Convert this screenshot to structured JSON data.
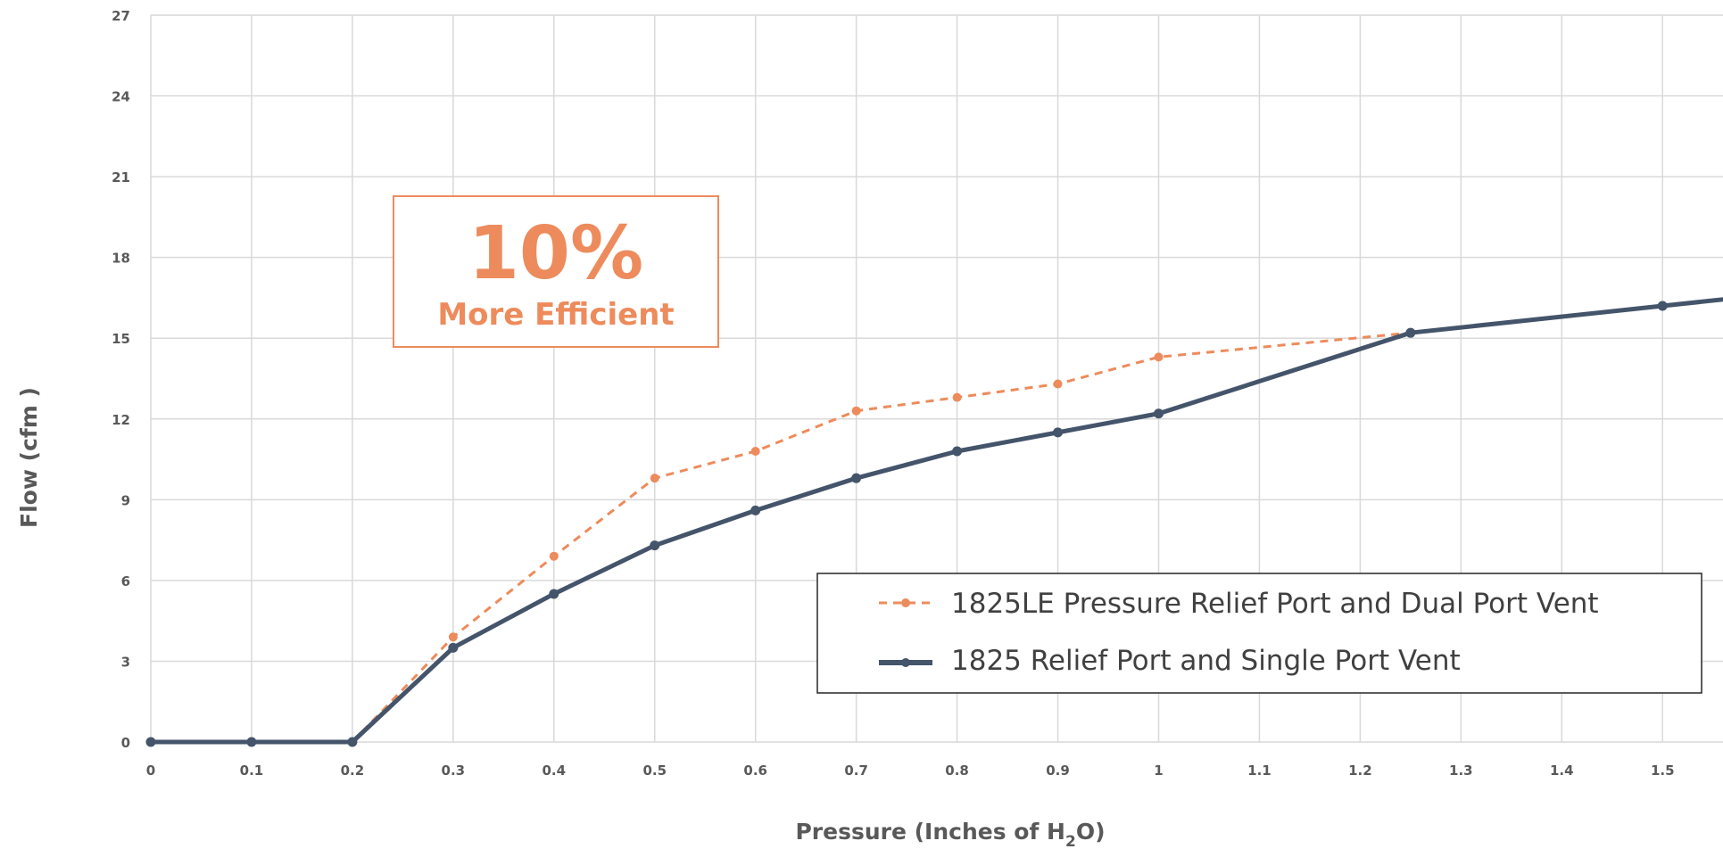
{
  "chart_data": {
    "type": "line",
    "xlabel": "Pressure (Inches of H",
    "xlabel_sub": "2",
    "xlabel_tail": "O)",
    "ylabel": "Flow (cfm )",
    "xlim": [
      0,
      1.56
    ],
    "ylim": [
      0,
      27
    ],
    "x_tick_labels": [
      "0",
      "0.1",
      "0.2",
      "0.3",
      "0.4",
      "0.5",
      "0.6",
      "0.7",
      "0.8",
      "0.9",
      "1",
      "1.1",
      "1.2",
      "1.3",
      "1.4",
      "1.5"
    ],
    "y_ticks": [
      0,
      3,
      6,
      9,
      12,
      15,
      18,
      21,
      24,
      27
    ],
    "grid": true,
    "legend_position": "bottom-right",
    "series": [
      {
        "name": "1825LE Pressure Relief Port and Dual Port Vent",
        "color": "#ed8b5c",
        "style": "dashed",
        "x": [
          0.2,
          0.3,
          0.4,
          0.5,
          0.6,
          0.7,
          0.8,
          0.9,
          1.0,
          1.25,
          1.5
        ],
        "y": [
          0,
          3.9,
          6.9,
          9.8,
          10.8,
          12.3,
          12.8,
          13.3,
          14.3,
          15.2,
          16.2
        ]
      },
      {
        "name": "1825 Relief Port and Single Port Vent",
        "color": "#44546a",
        "style": "solid",
        "x": [
          0,
          0.1,
          0.2,
          0.3,
          0.4,
          0.5,
          0.6,
          0.7,
          0.8,
          0.9,
          1.0,
          1.25,
          1.5,
          1.6
        ],
        "y": [
          0,
          0,
          0,
          3.5,
          5.5,
          7.3,
          8.6,
          9.8,
          10.8,
          11.5,
          12.2,
          15.2,
          16.2,
          16.6
        ]
      }
    ],
    "annotation": {
      "headline": "10%",
      "subline": "More Efficient",
      "color": "#ed8b5c"
    }
  }
}
